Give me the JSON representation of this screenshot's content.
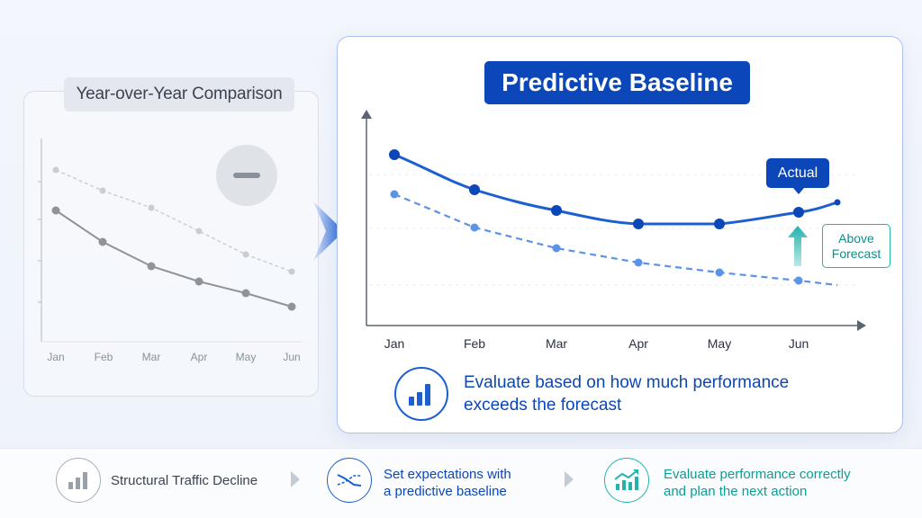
{
  "left": {
    "title": "Year-over-Year Comparison",
    "minus_icon": "minus-icon",
    "months": [
      "Jan",
      "Feb",
      "Mar",
      "Apr",
      "May",
      "Jun"
    ]
  },
  "right": {
    "title": "Predictive Baseline",
    "months": [
      "Jan",
      "Feb",
      "Mar",
      "Apr",
      "May",
      "Jun"
    ],
    "actual_label": "Actual",
    "above_label_line1": "Above",
    "above_label_line2": "Forecast",
    "eval_line1": "Evaluate based on how much performance",
    "eval_line2": "exceeds the forecast",
    "eval_icon": "bar-chart-icon"
  },
  "bottom": {
    "step1": {
      "text": "Structural Traffic Decline",
      "icon": "bar-chart-icon"
    },
    "step2": {
      "line1": "Set expectations with",
      "line2": "a predictive baseline",
      "icon": "crossing-lines-icon"
    },
    "step3": {
      "line1": "Evaluate performance correctly",
      "line2": "and plan the next action",
      "icon": "trend-up-chart-icon"
    }
  },
  "colors": {
    "primary": "#0b47b8",
    "line_actual": "#1c5fd1",
    "line_forecast": "#5b93e6",
    "teal": "#22b3ad",
    "grey_line": "#8f939a",
    "grey_light": "#c9ccd1"
  }
}
